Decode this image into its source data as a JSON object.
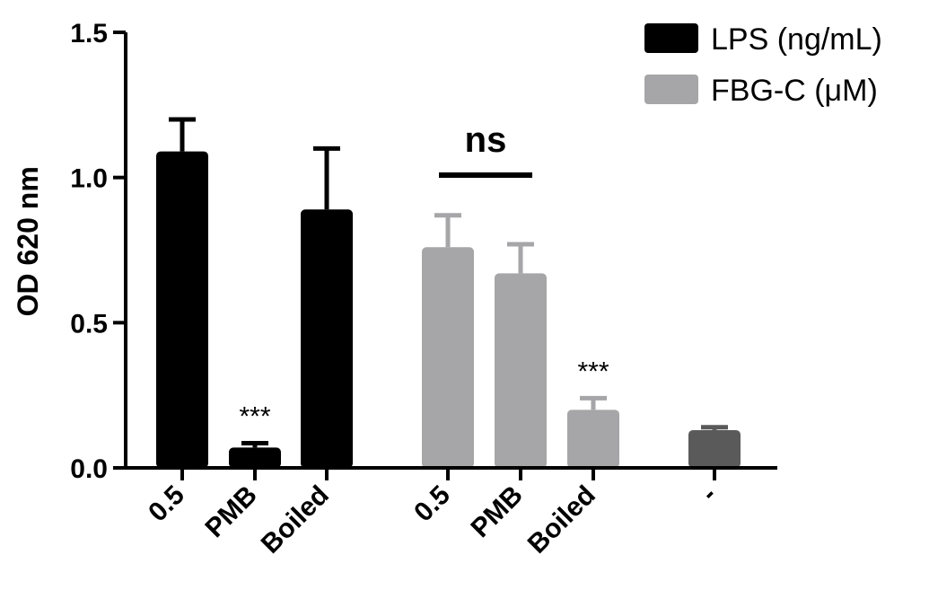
{
  "chart_data": {
    "type": "bar",
    "ylabel": "OD 620 nm",
    "xlabel": "",
    "ylim": [
      0,
      1.5
    ],
    "yticks": [
      "0.0",
      "0.5",
      "1.0",
      "1.5"
    ],
    "categories": [
      "0.5",
      "PMB",
      "Boiled",
      "0.5",
      "PMB",
      "Boiled",
      "-"
    ],
    "values": [
      1.09,
      0.07,
      0.89,
      0.76,
      0.67,
      0.2,
      0.13
    ],
    "errors": [
      0.11,
      0.015,
      0.21,
      0.11,
      0.1,
      0.04,
      0.01
    ],
    "bar_groups": [
      "LPS (ng/mL)",
      "LPS (ng/mL)",
      "LPS (ng/mL)",
      "FBG-C (μM)",
      "FBG-C (μM)",
      "FBG-C (μM)",
      "-"
    ],
    "legend": [
      {
        "name": "LPS (ng/mL)",
        "color": "#000000"
      },
      {
        "name": "FBG-C (μM)",
        "color": "#a6a6a8"
      }
    ],
    "control_color": "#5a5a5a",
    "legend_position": "top-right",
    "grid": false,
    "annotations": [
      {
        "text": "***",
        "bar_index": 1
      },
      {
        "text": "***",
        "bar_index": 5
      },
      {
        "text": "ns",
        "from_bar": 3,
        "to_bar": 4
      }
    ]
  }
}
